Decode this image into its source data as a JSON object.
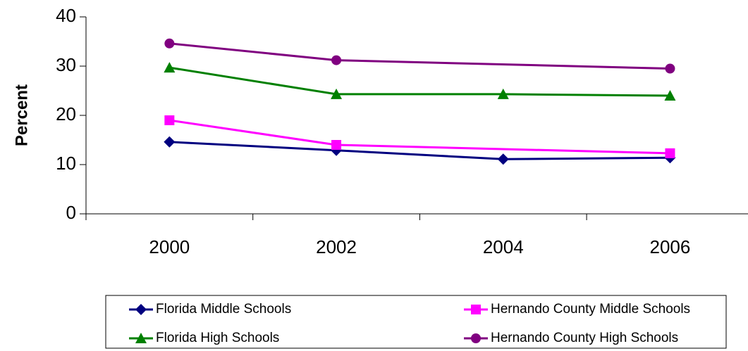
{
  "chart_data": {
    "type": "line",
    "y_label": "Percent",
    "categories": [
      "2000",
      "2002",
      "2004",
      "2006"
    ],
    "series": [
      {
        "name": "Florida Middle Schools",
        "color": "#000080",
        "marker": "diamond",
        "values": [
          14.6,
          12.9,
          11.1,
          11.4
        ]
      },
      {
        "name": "Hernando County Middle Schools",
        "color": "#ff00ff",
        "marker": "square",
        "values": [
          19.0,
          14.0,
          null,
          12.3
        ]
      },
      {
        "name": "Florida High Schools",
        "color": "#008000",
        "marker": "triangle",
        "values": [
          29.7,
          24.3,
          24.3,
          24.0
        ]
      },
      {
        "name": "Hernando County High Schools",
        "color": "#800080",
        "marker": "circle",
        "values": [
          34.6,
          31.2,
          null,
          29.5
        ]
      }
    ],
    "ylim": [
      0,
      40
    ],
    "yticks": [
      0,
      10,
      20,
      30,
      40
    ],
    "grid": false,
    "connect_gaps": true,
    "legend": "bottom"
  }
}
